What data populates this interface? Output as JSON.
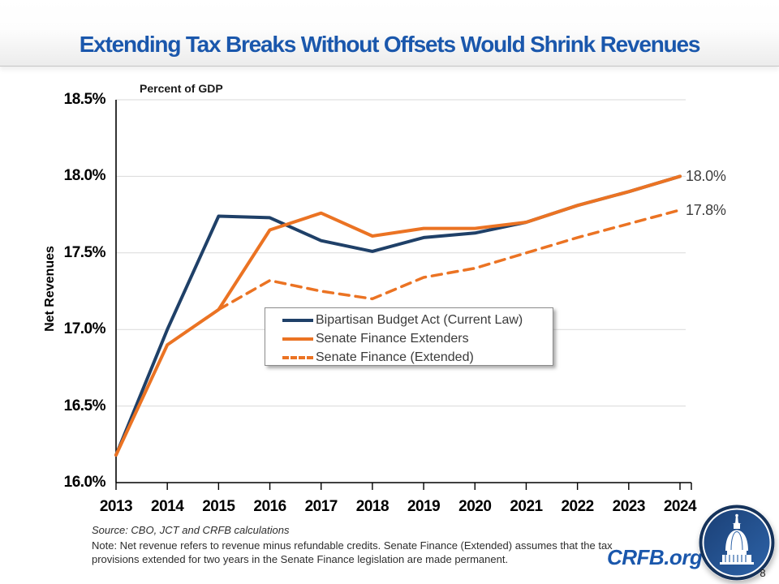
{
  "slide": {
    "title": "Extending Tax Breaks Without Offsets Would Shrink Revenues",
    "source": "Source: CBO, JCT and CRFB calculations",
    "note": "Note: Net revenue refers to revenue minus refundable credits. Senate Finance (Extended) assumes that the tax provisions extended for two years in the Senate Finance legislation are made permanent.",
    "brand": "CRFB.org",
    "page_number": "8"
  },
  "colors": {
    "title_blue": "#1a57ac",
    "navy": "#1f4068",
    "orange": "#eb7323",
    "gridline": "#d9d9d9",
    "axis": "#000000",
    "logo_ring": "#16335b",
    "logo_disk": "#22528f"
  },
  "chart_data": {
    "type": "line",
    "title": "Percent of GDP",
    "ylabel": "Net Revenues",
    "xlabel": "",
    "x": [
      "2013",
      "2014",
      "2015",
      "2016",
      "2017",
      "2018",
      "2019",
      "2020",
      "2021",
      "2022",
      "2023",
      "2024"
    ],
    "ylim": [
      16.0,
      18.5
    ],
    "ytick_values": [
      18.5,
      18.0,
      17.5,
      17.0,
      16.5,
      16.0
    ],
    "ytick_labels": [
      "18.5%",
      "18.0%",
      "17.5%",
      "17.0%",
      "16.5%",
      "16.0%"
    ],
    "grid": "horizontal",
    "legend_position": "inside-bottom-center",
    "series": [
      {
        "name": "Bipartisan Budget Act (Current Law)",
        "color": "#1f4068",
        "line_style": "solid",
        "values": [
          16.18,
          17.0,
          17.74,
          17.73,
          17.58,
          17.51,
          17.6,
          17.63,
          17.7,
          17.81,
          17.9,
          18.0
        ]
      },
      {
        "name": "Senate Finance Extenders",
        "color": "#eb7323",
        "line_style": "solid",
        "values": [
          16.18,
          16.9,
          17.13,
          17.65,
          17.76,
          17.61,
          17.66,
          17.66,
          17.7,
          17.81,
          17.9,
          18.0
        ]
      },
      {
        "name": "Senate Finance (Extended)",
        "color": "#eb7323",
        "line_style": "dashed",
        "values": [
          null,
          null,
          17.13,
          17.32,
          17.25,
          17.2,
          17.34,
          17.4,
          17.5,
          17.6,
          17.69,
          17.78
        ]
      }
    ],
    "end_labels": [
      {
        "text": "18.0%",
        "value": 18.0
      },
      {
        "text": "17.8%",
        "value": 17.78
      }
    ]
  }
}
